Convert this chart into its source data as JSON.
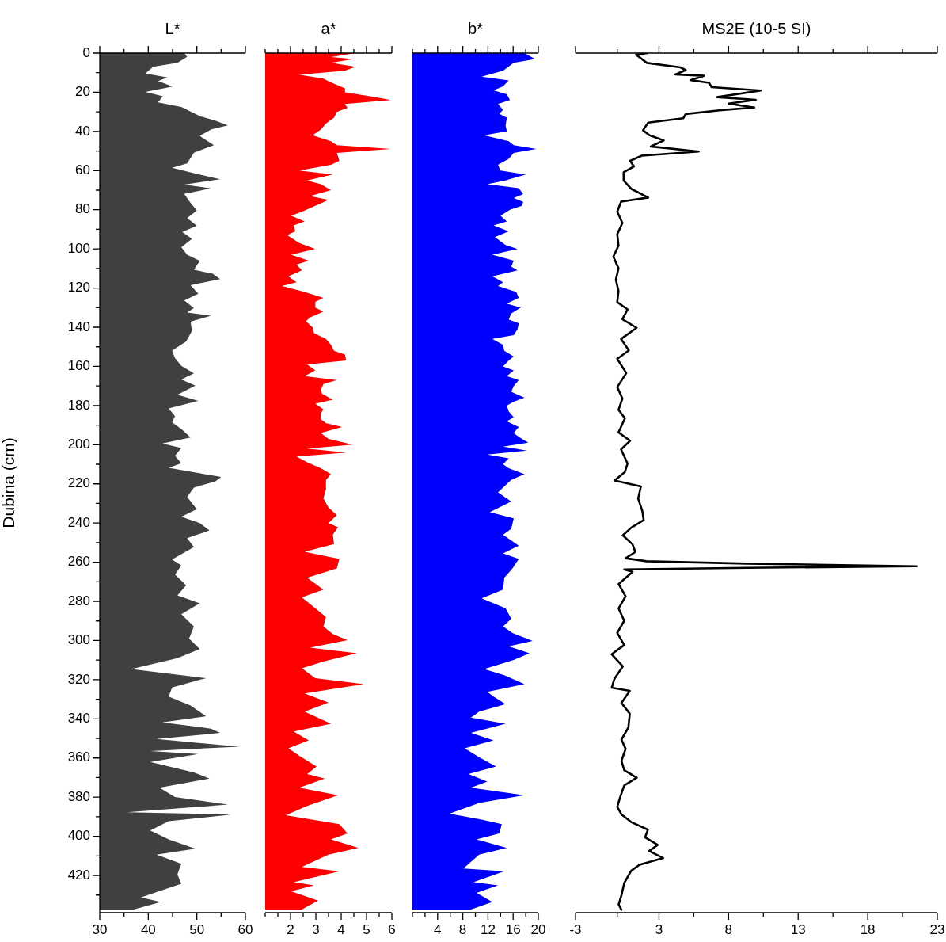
{
  "chart_data": [
    {
      "type": "area",
      "title": "L*",
      "ylabel": "Dubina (cm)",
      "orientation": "horizontal",
      "color": "#404040",
      "x": [
        0,
        1.9,
        5,
        7,
        10.4,
        12.4,
        14.3,
        17.1,
        19.8,
        22.1,
        25.2,
        27.5,
        32.2,
        34.5,
        36.9,
        38.9,
        42.3,
        47,
        50.9,
        56.3,
        58.6,
        61.7,
        64.4,
        67.2,
        69.1,
        71.9,
        76.5,
        80.4,
        84.3,
        88.2,
        91.3,
        94.9,
        99.1,
        103,
        106.1,
        110.7,
        112.6,
        115.4,
        118.5,
        122.9,
        126.3,
        130.2,
        132.5,
        134.1,
        137.2,
        141.8,
        147.3,
        151.9,
        155.8,
        159.7,
        163.6,
        166.7,
        169.8,
        174.5,
        177.6,
        181.5,
        185.4,
        188.5,
        192.4,
        196.3,
        199.4,
        201.7,
        205.6,
        209.5,
        211.8,
        216.5,
        218.8,
        221.9,
        226.7,
        233,
        236.8,
        240,
        243.8,
        247.7,
        252.3,
        258.6,
        261.7,
        266.3,
        271.8,
        277,
        281,
        286.6,
        292.8,
        299,
        304.4,
        309,
        314.6,
        319.2,
        324,
        328.6,
        333.2,
        338.7,
        341.8,
        345,
        347.2,
        350.3,
        354.2,
        356.5,
        358,
        362,
        367.4,
        370.5,
        375.2,
        379.9,
        383.8,
        387.7,
        388.9,
        392.3,
        397,
        401.6,
        406.3,
        409.4,
        414,
        419.5,
        424.2,
        428,
        431.2,
        433.5,
        437.4
      ],
      "values": [
        47.4,
        48,
        46,
        41,
        39.4,
        44,
        42,
        45,
        39.4,
        43,
        42,
        46.8,
        50.6,
        53.8,
        56.4,
        53,
        50.6,
        53.5,
        49.4,
        48,
        44.9,
        50,
        54.8,
        47.4,
        52.9,
        47.4,
        48.7,
        50,
        48,
        50,
        47,
        49,
        46.8,
        48,
        50.6,
        49.4,
        53.2,
        54.8,
        48.7,
        50.3,
        47.4,
        49.4,
        48,
        52.9,
        48.7,
        49,
        47.8,
        44.9,
        45.5,
        46.8,
        49.4,
        46.8,
        49.7,
        46,
        50.3,
        44.2,
        45.5,
        44.9,
        47,
        48.7,
        42.9,
        46.8,
        45.5,
        46.8,
        44.2,
        55,
        53.8,
        49.4,
        48,
        50,
        46.8,
        50.6,
        52.6,
        48,
        49.4,
        44.9,
        46.8,
        45.5,
        47.8,
        46,
        50.6,
        46.8,
        49.4,
        48.4,
        50.6,
        46,
        36.5,
        51.9,
        44.9,
        44.2,
        48.7,
        51.9,
        42.9,
        52.9,
        54.8,
        41.7,
        58.7,
        40.4,
        50.3,
        40.4,
        49.4,
        52.6,
        42.3,
        45.5,
        56.4,
        35.6,
        57,
        44.2,
        40.4,
        44.2,
        49.7,
        41.7,
        46.8,
        46,
        46.8,
        42.3,
        38.5,
        42.6,
        37
      ],
      "xlim": [
        30,
        60
      ],
      "xticks": [
        30,
        {
          "value": 35,
          "label": null
        },
        40,
        {
          "value": 45,
          "label": null
        },
        50,
        {
          "value": 55,
          "label": null
        },
        60
      ],
      "ylim": [
        439,
        0
      ],
      "yticks": [
        0,
        {
          "value": 10,
          "label": null
        },
        20,
        {
          "value": 30,
          "label": null
        },
        40,
        {
          "value": 50,
          "label": null
        },
        60,
        {
          "value": 70,
          "label": null
        },
        80,
        {
          "value": 90,
          "label": null
        },
        100,
        {
          "value": 110,
          "label": null
        },
        120,
        {
          "value": 130,
          "label": null
        },
        140,
        {
          "value": 150,
          "label": null
        },
        160,
        {
          "value": 170,
          "label": null
        },
        180,
        {
          "value": 190,
          "label": null
        },
        200,
        {
          "value": 210,
          "label": null
        },
        220,
        {
          "value": 230,
          "label": null
        },
        240,
        {
          "value": 250,
          "label": null
        },
        260,
        {
          "value": 270,
          "label": null
        },
        280,
        {
          "value": 290,
          "label": null
        },
        300,
        {
          "value": 310,
          "label": null
        },
        320,
        {
          "value": 330,
          "label": null
        },
        340,
        {
          "value": 350,
          "label": null
        },
        360,
        {
          "value": 370,
          "label": null
        },
        380,
        {
          "value": 390,
          "label": null
        },
        400,
        {
          "value": 410,
          "label": null
        },
        420,
        {
          "value": 430,
          "label": null
        }
      ]
    },
    {
      "type": "area",
      "title": "a*",
      "orientation": "horizontal",
      "color": "#ff0000",
      "tick_labels": "x",
      "x": [
        0,
        2,
        3,
        5,
        7,
        9,
        11,
        13,
        15,
        18,
        20,
        22,
        24,
        26,
        28,
        30,
        33,
        36,
        39,
        42,
        45,
        47,
        49,
        51,
        55,
        57,
        60,
        62,
        65,
        67,
        70,
        73,
        75,
        78,
        81,
        83,
        86,
        88,
        91,
        93,
        97,
        100,
        103,
        106,
        108,
        111,
        114,
        117,
        119,
        122,
        125,
        127,
        130,
        132,
        135,
        137,
        140,
        143,
        146,
        149,
        152,
        154,
        157,
        159,
        162,
        165,
        167,
        169,
        172,
        174,
        177,
        179,
        182,
        184,
        187,
        189,
        191,
        194,
        197,
        200,
        202,
        204,
        206,
        209,
        212,
        215,
        218,
        222.8,
        227.5,
        232,
        236,
        240,
        242.2,
        246,
        250.8,
        254.7,
        258.3,
        263.2,
        268,
        274,
        278,
        283.5,
        288,
        292.8,
        296.7,
        299.8,
        303.7,
        306.5,
        310.7,
        314.2,
        319.2,
        322.3,
        327,
        331.7,
        336.3,
        342.5,
        346.4,
        351,
        355,
        358.9,
        364.3,
        368.2,
        370.5,
        375.2,
        379,
        384.5,
        389.2,
        393.8,
        398.5,
        401.6,
        405.9,
        409.4,
        415.6,
        417.9,
        423.4,
        425,
        428.1,
        432.8,
        437.4
      ],
      "values": [
        4.57,
        3.6,
        4.5,
        3.6,
        4.57,
        4.15,
        2.35,
        3.3,
        3.6,
        4.15,
        4.15,
        5.1,
        5.97,
        4.15,
        4.25,
        3.83,
        3.72,
        3.4,
        3.2,
        2.87,
        3.6,
        3.83,
        5.97,
        3.83,
        3.93,
        3.6,
        2.35,
        3.67,
        2.66,
        3.2,
        3.6,
        2.77,
        3.5,
        2.98,
        2.45,
        2.03,
        2.56,
        2.13,
        2.19,
        1.87,
        2.35,
        2.98,
        2.03,
        2.72,
        2.24,
        2.45,
        1.92,
        2.24,
        1.66,
        2.56,
        3.3,
        2.98,
        2.98,
        3.3,
        2.77,
        2.61,
        2.87,
        2.93,
        3.4,
        3.6,
        3.72,
        4.15,
        4.2,
        2.66,
        2.98,
        2.56,
        3.83,
        3.3,
        3.2,
        3.25,
        3.67,
        2.98,
        3.3,
        3.2,
        3.2,
        3.4,
        4.04,
        3.2,
        3.5,
        4.46,
        2.66,
        4.2,
        2.24,
        2.66,
        3.2,
        3.6,
        3.4,
        3.4,
        3.3,
        3.5,
        3.83,
        3.5,
        3.88,
        3.67,
        3.72,
        2.56,
        3.93,
        3.83,
        2.66,
        3.3,
        2.45,
        2.98,
        3.4,
        3.3,
        3.67,
        4.25,
        2.77,
        4.62,
        3.3,
        2.45,
        2.98,
        4.89,
        2.56,
        3.5,
        2.56,
        3.6,
        2.13,
        2.72,
        1.92,
        2.35,
        3.03,
        2.66,
        3.35,
        2.35,
        3.88,
        2.66,
        1.82,
        3.93,
        4.25,
        3.6,
        4.68,
        3.5,
        2.45,
        3.93,
        2.13,
        2.93,
        2.03,
        3.09,
        2.45
      ],
      "xlim": [
        1,
        6
      ],
      "xticks": [
        {
          "value": 1,
          "label": null
        },
        {
          "value": 1.5,
          "label": null
        },
        2,
        {
          "value": 2.5,
          "label": null
        },
        3,
        {
          "value": 3.5,
          "label": null
        },
        4,
        {
          "value": 4.5,
          "label": null
        },
        5,
        {
          "value": 5.5,
          "label": null
        },
        6
      ],
      "ylim": [
        439,
        0
      ]
    },
    {
      "type": "area",
      "title": "b*",
      "orientation": "horizontal",
      "color": "#0000ff",
      "tick_labels": "x",
      "x": [
        0,
        3,
        5,
        9,
        12,
        14,
        17,
        19,
        21,
        24,
        26,
        29,
        31,
        33,
        37,
        40,
        42,
        45,
        47,
        49,
        51,
        54,
        57,
        60,
        62,
        65,
        67,
        69,
        72,
        74,
        76,
        78,
        80,
        83,
        86,
        88,
        91,
        94,
        98,
        100,
        103,
        106,
        109,
        111,
        114,
        117,
        119,
        122,
        125,
        128,
        130,
        133,
        136,
        138,
        141,
        144,
        146,
        149,
        152,
        155,
        157,
        160,
        162,
        165,
        167,
        170,
        173,
        176,
        178,
        180,
        183,
        186,
        188,
        191,
        194,
        196,
        199,
        201,
        203,
        205,
        207,
        210,
        212,
        215,
        218,
        224.4,
        229,
        234.5,
        237.6,
        243,
        246,
        251.6,
        255.5,
        258.3,
        263.2,
        268,
        274,
        278.5,
        283.5,
        288.9,
        292.8,
        296.2,
        300.2,
        302.9,
        306.5,
        309.9,
        314.6,
        317.7,
        322.3,
        326.2,
        328.6,
        332.5,
        336.3,
        339.4,
        342.5,
        347.2,
        351,
        355,
        359.6,
        364.3,
        368.2,
        372,
        375.2,
        379,
        383,
        388.4,
        391.5,
        393.8,
        398.5,
        401.6,
        405.9,
        409.4,
        416.4,
        417.9,
        423.4,
        425,
        428.9,
        433.5,
        437.4
      ],
      "values": [
        17.8,
        19.5,
        16.1,
        14.4,
        11,
        15.3,
        14.4,
        12.9,
        15,
        15.5,
        13.6,
        14.4,
        13.8,
        15,
        14.8,
        15,
        11.4,
        15.3,
        16.1,
        19.7,
        16.1,
        15.3,
        13.6,
        14,
        18,
        14.8,
        11.9,
        16.9,
        17.6,
        16.1,
        17.6,
        17.4,
        15.5,
        14,
        15,
        12.9,
        15.3,
        13.1,
        14.8,
        16.7,
        12.7,
        16.1,
        15.7,
        16.7,
        12.7,
        14.4,
        13.6,
        16.5,
        16.9,
        15,
        17.2,
        15.7,
        15.3,
        16.9,
        16.7,
        16.1,
        12.7,
        14.4,
        14.6,
        16.1,
        15.3,
        14.4,
        16.1,
        15,
        16.9,
        16.1,
        15.7,
        17.8,
        16.1,
        15,
        15.3,
        16.1,
        15,
        16.9,
        16.1,
        16.9,
        18.4,
        14.4,
        18.2,
        11.9,
        15.3,
        14.4,
        15.3,
        17.8,
        15.7,
        13.6,
        15.7,
        12.3,
        16.1,
        15.7,
        14.4,
        16.9,
        14.4,
        16.9,
        15.9,
        14.6,
        14.4,
        11,
        14.8,
        15.7,
        14.4,
        15.9,
        19.1,
        15.3,
        18.6,
        16.1,
        11.4,
        14.6,
        17.8,
        11.9,
        12.9,
        14.8,
        10.6,
        9.3,
        14.8,
        9.3,
        12.9,
        8.3,
        10.6,
        13.3,
        8.9,
        11.9,
        9.3,
        17.8,
        10.6,
        5.9,
        11,
        14.2,
        13.8,
        10.2,
        15,
        10.6,
        8.1,
        14.6,
        9.7,
        13.6,
        10.2,
        12.7,
        9.3
      ],
      "xlim": [
        0,
        20
      ],
      "xticks": [
        {
          "value": 0,
          "label": null
        },
        {
          "value": 2,
          "label": null
        },
        4,
        {
          "value": 6,
          "label": null
        },
        8,
        {
          "value": 10,
          "label": null
        },
        12,
        {
          "value": 14,
          "label": null
        },
        16,
        {
          "value": 18,
          "label": null
        },
        20
      ],
      "ylim": [
        439,
        0
      ]
    },
    {
      "type": "line",
      "title": "MS2E (10-5 SI)",
      "orientation": "horizontal",
      "color": "#000000",
      "tick_labels": "x",
      "x": [
        0,
        0.8,
        5,
        7.3,
        8.7,
        10.9,
        11.6,
        13.8,
        15.2,
        17.4,
        19.1,
        22.5,
        23.9,
        25.8,
        27.8,
        29.2,
        31.1,
        33.3,
        35.5,
        39.4,
        42,
        44.6,
        47.7,
        50.3,
        52.4,
        55,
        57.9,
        60.8,
        65.1,
        69.4,
        73.8,
        75.9,
        81,
        86.8,
        92.5,
        98.3,
        104,
        109.9,
        115.7,
        121.5,
        127.2,
        130.9,
        135.9,
        140.3,
        146,
        151.8,
        156.2,
        163.4,
        170.6,
        176.4,
        182.2,
        186.5,
        193.7,
        198,
        202.4,
        209.6,
        213.9,
        218.3,
        221.3,
        227.5,
        233.8,
        238.5,
        242.4,
        246.3,
        250.9,
        254.8,
        258,
        259.5,
        260.7,
        262.1,
        262.9,
        263.7,
        264.9,
        271.2,
        277.4,
        283.6,
        289.9,
        296.1,
        302.3,
        307,
        313.2,
        319.5,
        324.1,
        325.7,
        331.9,
        337.4,
        344.4,
        350.6,
        355.3,
        361.5,
        366.2,
        370.1,
        374,
        380.2,
        384.9,
        388.8,
        392.7,
        396.6,
        400.5,
        404.4,
        407.5,
        411.1,
        414.5,
        417.6,
        423.9,
        430.1,
        434.8,
        437.5
      ],
      "values": [
        2.17,
        1.35,
        2.13,
        4.55,
        4.92,
        4.18,
        6.23,
        5.3,
        6.6,
        6.78,
        10.32,
        7.15,
        9.95,
        8,
        9.85,
        7.34,
        4.92,
        4.74,
        2.22,
        1.85,
        2.32,
        3.34,
        2.41,
        5.85,
        1.76,
        0.92,
        1.2,
        0.46,
        0.46,
        1.02,
        2.22,
        0.27,
        0,
        0.37,
        0,
        0.09,
        -0.28,
        0.09,
        -0.1,
        0.09,
        0,
        0.74,
        0.37,
        1.39,
        0.27,
        0.83,
        0,
        0.65,
        0,
        0.37,
        0.09,
        0.55,
        0.09,
        0.92,
        0.27,
        0.74,
        0.55,
        -0.19,
        1.7,
        1.5,
        1.8,
        1.9,
        1,
        0.4,
        1.1,
        1.3,
        0.6,
        2.1,
        9.3,
        21.5,
        9.3,
        0.5,
        1.1,
        0.1,
        0.6,
        0.1,
        0.5,
        0,
        0.5,
        -0.4,
        0.4,
        -0.2,
        -0.4,
        0.9,
        0.3,
        0.9,
        0.8,
        0.3,
        0.6,
        0.3,
        0.5,
        1.4,
        0.5,
        0.2,
        0,
        0.3,
        1,
        2.2,
        2,
        2.9,
        2.3,
        3.3,
        1.6,
        1,
        0.5,
        0.3,
        0.1,
        0.3
      ],
      "xlim": [
        -3,
        23
      ],
      "xticks": [
        -3,
        {
          "value": 0,
          "label": null
        },
        3,
        {
          "value": 5.5,
          "label": null
        },
        8,
        {
          "value": 10.5,
          "label": null
        },
        13,
        {
          "value": 15.5,
          "label": null
        },
        18,
        {
          "value": 20.5,
          "label": null
        },
        23
      ],
      "ylim": [
        439,
        0
      ]
    }
  ]
}
